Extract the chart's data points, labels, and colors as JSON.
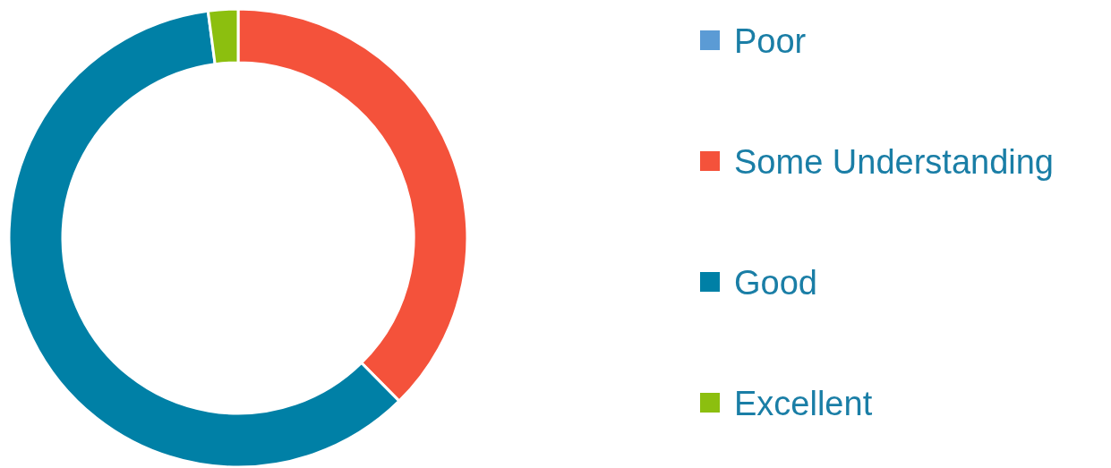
{
  "chart_data": {
    "type": "donut",
    "categories": [
      "Poor",
      "Some Understanding",
      "Good",
      "Excellent"
    ],
    "values": [
      0,
      37.6,
      60.3,
      2.1
    ],
    "colors": [
      "#5b9bd5",
      "#f4523b",
      "#0080a6",
      "#8cbf0f"
    ],
    "legend": "right"
  }
}
